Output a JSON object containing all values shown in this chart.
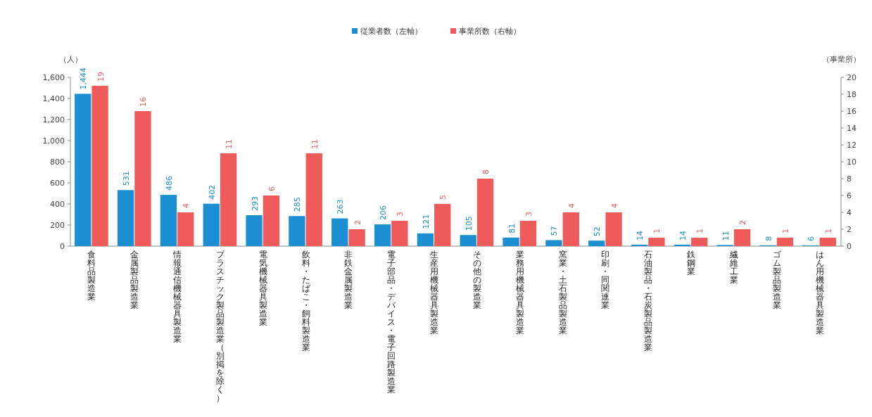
{
  "chart_data": {
    "type": "bar",
    "ylabel": "（人）",
    "y2label": "（事業所）",
    "legend": "top",
    "categories": [
      "食料品製造業",
      "金属製品製造業",
      "情報通信機械器具製造業",
      "プラスチック製品製造業（別掲を除く）",
      "電気機械器具製造業",
      "飲料・たばこ・飼料製造業",
      "非鉄金属製造業",
      "電子部品・デバイス・電子回路製造業",
      "生産用機械器具製造業",
      "その他の製造業",
      "業務用機械器具製造業",
      "窯業・土石製品製造業",
      "印刷・同関連業",
      "石油製品・石炭製品製造業",
      "鉄鋼業",
      "繊維工業",
      "ゴム製品製造業",
      "はん用機械器具製造業"
    ],
    "series": [
      {
        "name": "従業者数（左軸）",
        "color": "#1b8fd2",
        "values": [
          1444,
          531,
          486,
          402,
          293,
          285,
          263,
          206,
          121,
          105,
          81,
          57,
          52,
          14,
          14,
          11,
          8,
          6
        ],
        "value_labels": [
          "1,444",
          "531",
          "486",
          "402",
          "293",
          "285",
          "263",
          "206",
          "121",
          "105",
          "81",
          "57",
          "52",
          "14",
          "14",
          "11",
          "8",
          "6"
        ]
      },
      {
        "name": "事業所数（右軸）",
        "color": "#ef5b5b",
        "axis": "y2",
        "values": [
          19,
          16,
          4,
          11,
          6,
          11,
          2,
          3,
          5,
          8,
          3,
          4,
          4,
          1,
          1,
          2,
          1,
          1
        ],
        "value_labels": [
          "19",
          "16",
          "4",
          "11",
          "6",
          "11",
          "2",
          "3",
          "5",
          "8",
          "3",
          "4",
          "4",
          "1",
          "1",
          "2",
          "1",
          "1"
        ]
      }
    ],
    "ylim": [
      0,
      1600
    ],
    "yticks": [
      0,
      {
        "value": 200,
        "label": "200"
      },
      {
        "value": 400,
        "label": "400"
      },
      {
        "value": 600,
        "label": "600"
      },
      {
        "value": 800,
        "label": "800"
      },
      {
        "value": 1000,
        "label": "1,000"
      },
      {
        "value": 1200,
        "label": "1,200"
      },
      {
        "value": 1400,
        "label": "1,400"
      },
      {
        "value": 1600,
        "label": "1,600"
      }
    ],
    "y2lim": [
      0,
      20
    ],
    "y2ticks": [
      0,
      2,
      4,
      6,
      8,
      10,
      12,
      14,
      16,
      18,
      20
    ]
  }
}
